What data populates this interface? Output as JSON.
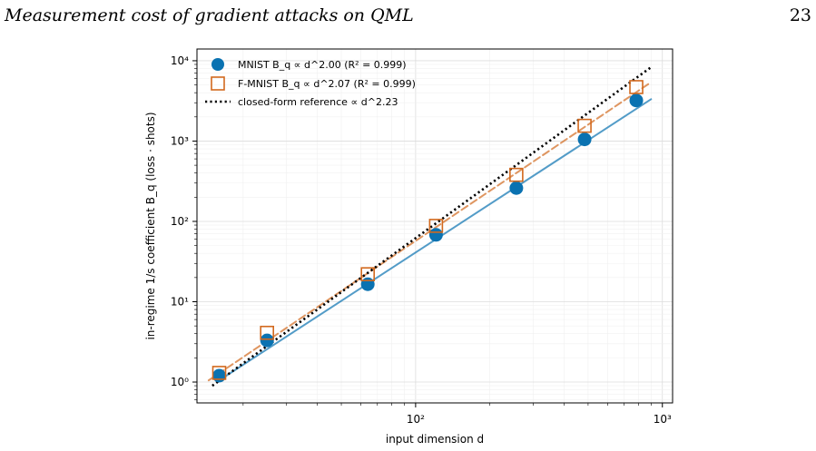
{
  "page": {
    "running_title": "Measurement cost of gradient attacks on QML",
    "page_number": "23"
  },
  "chart_data": {
    "type": "scatter",
    "xscale": "log",
    "yscale": "log",
    "xlim": [
      13,
      1100
    ],
    "ylim": [
      0.55,
      14000
    ],
    "xlabel": "input dimension d",
    "ylabel": "in-regime 1/s coefficient  B_q  (loss · shots)",
    "x_ticks": [
      100,
      1000
    ],
    "x_tick_labels": [
      "10²",
      "10³"
    ],
    "y_ticks": [
      1,
      10,
      100,
      1000,
      10000
    ],
    "y_tick_labels": [
      "10⁰",
      "10¹",
      "10²",
      "10³",
      "10⁴"
    ],
    "grid": true,
    "legend_position": "top-left",
    "series": [
      {
        "name": "MNIST",
        "legend_label": "MNIST  B_q ∝ d^2.00  (R² = 0.999)",
        "marker": "circle",
        "color": "#0a72b1",
        "x": [
          16,
          25,
          64,
          121,
          256,
          484,
          784
        ],
        "y": [
          1.2,
          3.3,
          16.5,
          68,
          260,
          1050,
          3200
        ],
        "fit": {
          "style": "solid",
          "exponent": 2.0,
          "x_range": [
            16,
            900
          ],
          "y_start": 1.05
        }
      },
      {
        "name": "F-MNIST",
        "legend_label": "F-MNIST  B_q ∝ d^2.07  (R² = 0.999)",
        "marker": "square",
        "color": "#d2691e",
        "x": [
          16,
          25,
          64,
          121,
          256,
          484,
          784
        ],
        "y": [
          1.3,
          4.1,
          22,
          88,
          380,
          1550,
          4700
        ],
        "fit": {
          "style": "dashed",
          "exponent": 2.07,
          "x_range": [
            14.5,
            900
          ],
          "y_start": 1.05
        }
      },
      {
        "name": "closed-form reference",
        "legend_label": "closed-form reference ∝ d^2.23",
        "marker": "none",
        "color": "#000000",
        "fit": {
          "style": "dotted",
          "exponent": 2.23,
          "x_range": [
            15,
            900
          ],
          "y_start": 0.9
        }
      }
    ]
  }
}
